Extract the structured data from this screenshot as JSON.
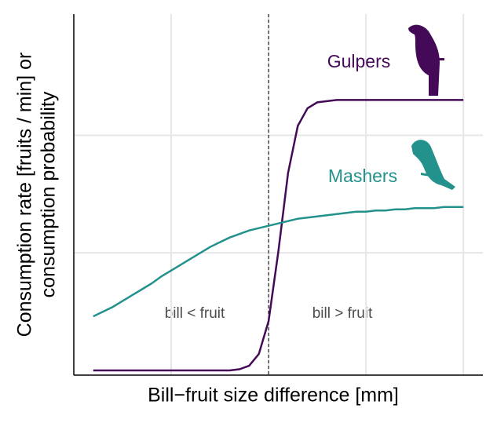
{
  "chart_data": {
    "type": "line",
    "x_label": "Bill−fruit size difference [mm]",
    "y_label": [
      "Consumption rate [fruits / min] or",
      "consumption probability"
    ],
    "annotations": [
      "bill < fruit",
      "bill > fruit"
    ],
    "x": [
      0.2,
      0.3,
      0.4,
      0.5,
      0.6,
      0.7,
      0.8,
      0.9,
      1.0,
      1.1,
      1.2,
      1.3,
      1.4,
      1.5,
      1.6,
      1.7,
      1.8,
      1.9,
      2.0,
      2.1,
      2.2,
      2.3,
      2.4,
      2.5,
      2.6,
      2.7,
      2.8,
      2.9,
      3.0,
      3.1,
      3.2,
      3.3,
      3.4,
      3.5,
      3.6,
      3.7,
      3.8,
      3.9,
      4.0
    ],
    "series": [
      {
        "name": "Gulpers",
        "color": "#440a57",
        "values": [
          0,
          0,
          0,
          0,
          0,
          0,
          0,
          0,
          0,
          0,
          0,
          0,
          0,
          0,
          0,
          0.01,
          0.04,
          0.14,
          0.42,
          1.01,
          1.68,
          2.08,
          2.23,
          2.28,
          2.29,
          2.3,
          2.3,
          2.3,
          2.3,
          2.3,
          2.3,
          2.3,
          2.3,
          2.3,
          2.3,
          2.3,
          2.3,
          2.3,
          2.3
        ]
      },
      {
        "name": "Mashers",
        "color": "#23918c",
        "values": [
          0.46,
          0.5,
          0.54,
          0.59,
          0.64,
          0.69,
          0.74,
          0.8,
          0.85,
          0.9,
          0.95,
          1.0,
          1.05,
          1.09,
          1.13,
          1.16,
          1.19,
          1.21,
          1.23,
          1.25,
          1.27,
          1.29,
          1.3,
          1.31,
          1.32,
          1.33,
          1.34,
          1.35,
          1.35,
          1.36,
          1.36,
          1.37,
          1.37,
          1.38,
          1.38,
          1.38,
          1.39,
          1.39,
          1.39
        ]
      }
    ],
    "vline": 2,
    "xlim": [
      0,
      4.2
    ],
    "ylim": [
      -0.04,
      3.03
    ],
    "xticks": [
      1,
      2,
      3,
      4
    ],
    "yticks": [
      1,
      2
    ],
    "grid": true
  }
}
